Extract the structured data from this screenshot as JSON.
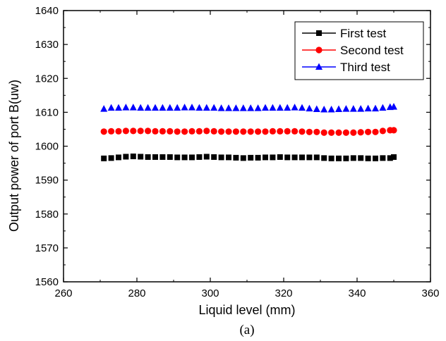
{
  "chart_data": {
    "type": "scatter",
    "title": "",
    "xlabel": "Liquid level (mm)",
    "ylabel": "Output power of port B(uw)",
    "xlim": [
      260,
      360
    ],
    "ylim": [
      1560,
      1640
    ],
    "xticks": [
      260,
      280,
      300,
      320,
      340,
      360
    ],
    "yticks": [
      1560,
      1570,
      1580,
      1590,
      1600,
      1610,
      1620,
      1630,
      1640
    ],
    "grid": false,
    "legend_position": "top-right",
    "caption": "(a)",
    "x": [
      271,
      273,
      275,
      277,
      279,
      281,
      283,
      285,
      287,
      289,
      291,
      293,
      295,
      297,
      299,
      301,
      303,
      305,
      307,
      309,
      311,
      313,
      315,
      317,
      319,
      321,
      323,
      325,
      327,
      329,
      331,
      333,
      335,
      337,
      339,
      341,
      343,
      345,
      347,
      349,
      350
    ],
    "series": [
      {
        "name": "First  test",
        "color": "#000000",
        "marker": "square",
        "values": [
          1596.4,
          1596.5,
          1596.7,
          1596.9,
          1597.0,
          1596.9,
          1596.8,
          1596.8,
          1596.8,
          1596.8,
          1596.7,
          1596.7,
          1596.7,
          1596.8,
          1596.9,
          1596.8,
          1596.7,
          1596.7,
          1596.6,
          1596.5,
          1596.6,
          1596.6,
          1596.7,
          1596.7,
          1596.8,
          1596.7,
          1596.7,
          1596.7,
          1596.7,
          1596.7,
          1596.5,
          1596.4,
          1596.4,
          1596.4,
          1596.5,
          1596.5,
          1596.4,
          1596.4,
          1596.5,
          1596.5,
          1596.8
        ]
      },
      {
        "name": "Second test",
        "color": "#ff0000",
        "marker": "circle",
        "values": [
          1604.3,
          1604.4,
          1604.4,
          1604.5,
          1604.5,
          1604.5,
          1604.5,
          1604.4,
          1604.4,
          1604.4,
          1604.3,
          1604.3,
          1604.4,
          1604.4,
          1604.5,
          1604.4,
          1604.3,
          1604.3,
          1604.3,
          1604.3,
          1604.3,
          1604.3,
          1604.3,
          1604.4,
          1604.4,
          1604.4,
          1604.4,
          1604.3,
          1604.2,
          1604.2,
          1604.0,
          1604.0,
          1604.0,
          1604.0,
          1604.0,
          1604.1,
          1604.2,
          1604.2,
          1604.5,
          1604.7,
          1604.7
        ]
      },
      {
        "name": "Third test",
        "color": "#0000ff",
        "marker": "triangle",
        "values": [
          1611.0,
          1611.3,
          1611.3,
          1611.4,
          1611.4,
          1611.3,
          1611.3,
          1611.3,
          1611.3,
          1611.3,
          1611.3,
          1611.4,
          1611.4,
          1611.3,
          1611.3,
          1611.3,
          1611.2,
          1611.2,
          1611.2,
          1611.2,
          1611.2,
          1611.2,
          1611.3,
          1611.3,
          1611.3,
          1611.3,
          1611.4,
          1611.3,
          1611.1,
          1610.9,
          1610.8,
          1610.8,
          1610.9,
          1611.0,
          1611.0,
          1611.0,
          1611.1,
          1611.1,
          1611.3,
          1611.5,
          1611.6
        ]
      }
    ]
  }
}
